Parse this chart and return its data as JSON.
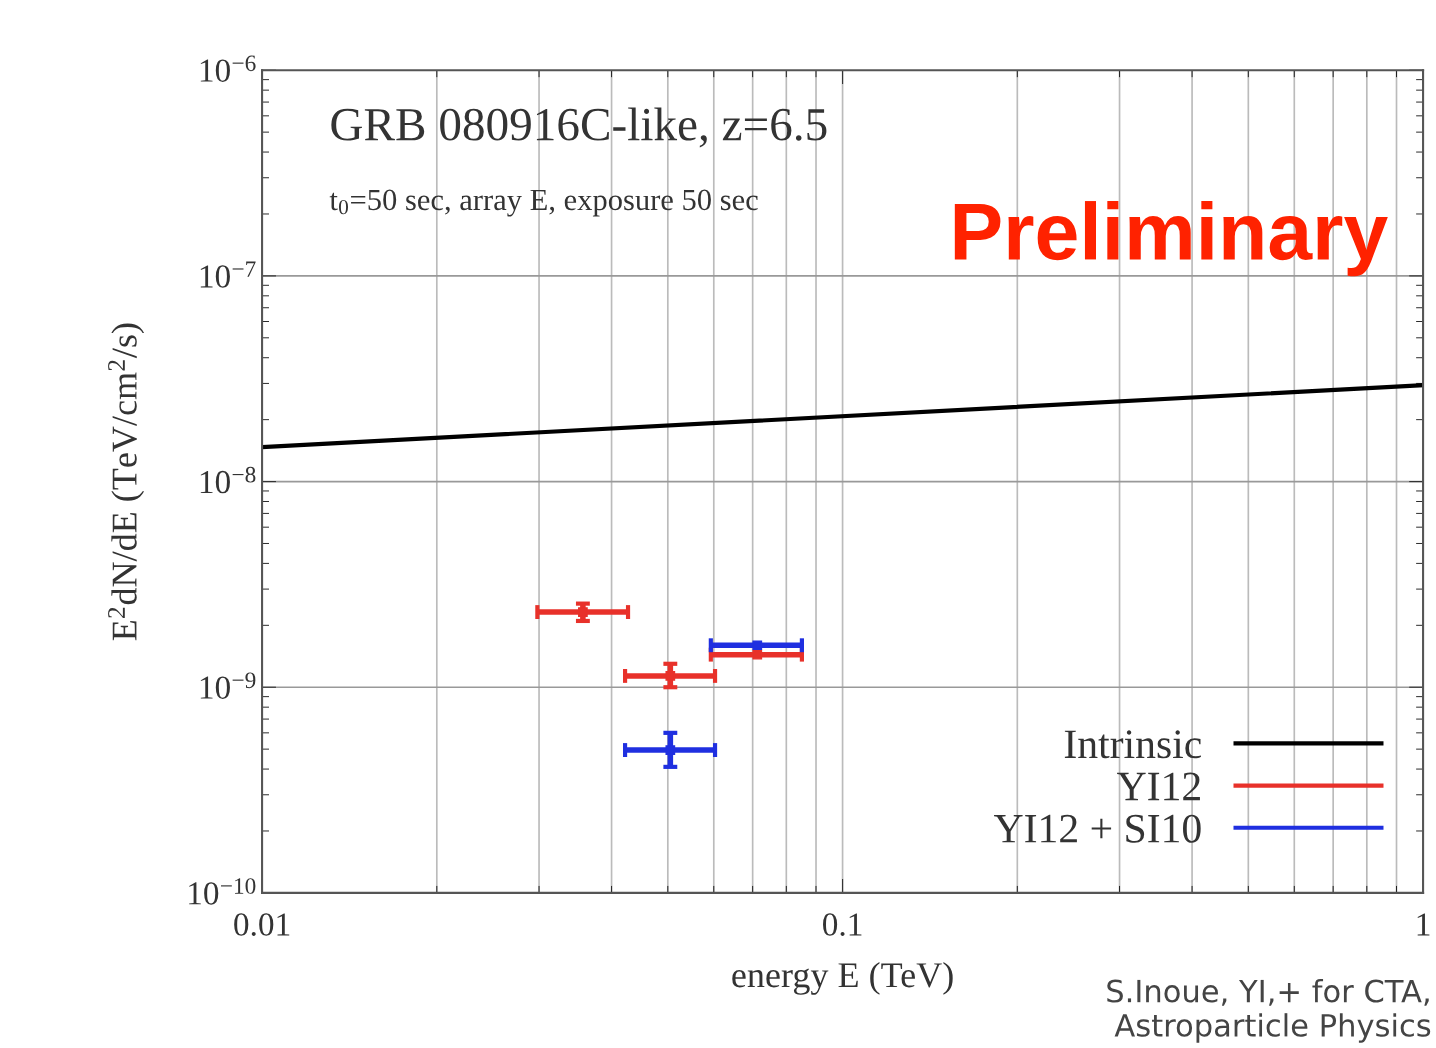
{
  "chart_data": {
    "type": "scatter",
    "title": "GRB 080916C-like, z=6.5",
    "subtitle": "t$_{0}$=50 sec, array E, exposure 50 sec",
    "xlabel": "energy E (TeV)",
    "ylabel": "E$^{2}$dN/dE (TeV/cm$^{2}$/s)",
    "log": "xy",
    "xlim": [
      0.01,
      1
    ],
    "ylim": [
      1e-10,
      1e-06
    ],
    "xticks": [
      0.01,
      0.1,
      1
    ],
    "yticks": [
      {
        "value": 1e-10,
        "label": "10$^{−10}$"
      },
      {
        "value": 1e-09,
        "label": "10$^{−9}$"
      },
      {
        "value": 1e-08,
        "label": "10$^{−8}$"
      },
      {
        "value": 1e-07,
        "label": "10$^{−7}$"
      },
      {
        "value": 1e-06,
        "label": "10$^{−6}$"
      }
    ],
    "grid": true,
    "legend": "bottom right",
    "series": [
      {
        "name": "Intrinsic",
        "type": "line",
        "color": "#000000",
        "x": [
          0.01,
          1
        ],
        "values": [
          1.47e-08,
          2.94e-08
        ],
        "marker": "none"
      },
      {
        "name": "YI12",
        "color": "#e8312a",
        "x": [
          0.0357,
          0.0505,
          0.0713
        ],
        "values": [
          2.32e-09,
          1.135e-09,
          1.44e-09
        ],
        "errors": [
          [
            2.1e-09,
            2.55e-09
          ],
          [
            1e-09,
            1.3e-09
          ],
          null
        ],
        "xerrors": [
          [
            0.0298,
            0.0427
          ],
          [
            0.0422,
            0.0603
          ],
          [
            0.0593,
            0.0851
          ]
        ],
        "marker": "square"
      },
      {
        "name": "YI12 + SI10",
        "color": "#1f2fe0",
        "x": [
          0.0505,
          0.0713
        ],
        "values": [
          4.95e-10,
          1.6e-09
        ],
        "errors": [
          [
            4.1e-10,
            6e-10
          ],
          null
        ],
        "xerrors": [
          [
            0.0422,
            0.0603
          ],
          [
            0.0593,
            0.0851
          ]
        ],
        "marker": "square"
      }
    ],
    "annotations": [
      "Preliminary",
      "S.Inoue, YI,+ for CTA,\nAstroparticle Physics"
    ]
  }
}
